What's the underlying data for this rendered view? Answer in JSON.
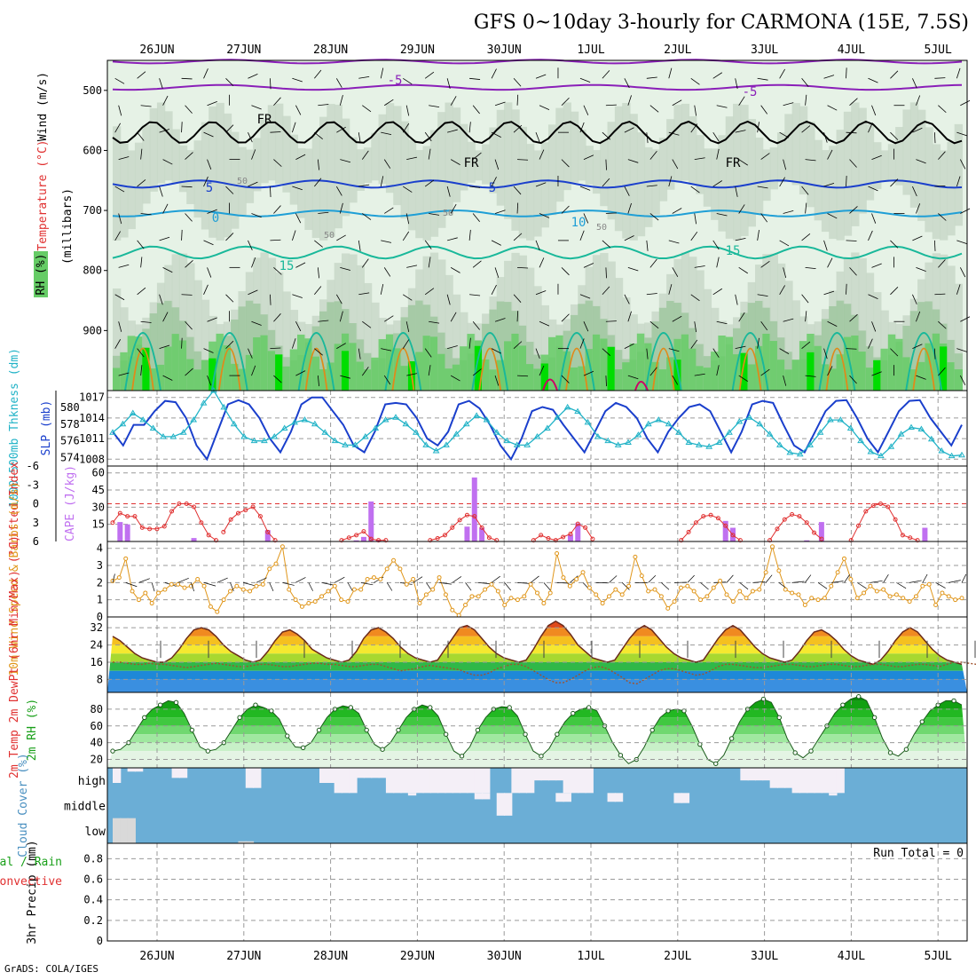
{
  "title": "GFS 0~10day 3-hourly for CARMONA (15E, 7.5S)",
  "footer": "GrADS: COLA/IGES",
  "dates": [
    "26JUN",
    "27JUN",
    "28JUN",
    "29JUN",
    "30JUN",
    "1JUL",
    "2JUL",
    "3JUL",
    "4JUL",
    "5JUL"
  ],
  "colors": {
    "rh_light": "#e6f2e6",
    "rh_mid": "#c8d8c8",
    "rh_dark": "#9fc79f",
    "rh_green": "#66cc66",
    "rh_bright": "#00dd00",
    "t_purple": "#8a1fb8",
    "t_black": "#000000",
    "t_blue": "#1a3fcc",
    "t_cyan": "#1f9fd6",
    "t_teal": "#19b89a",
    "t_orange": "#e08a1a",
    "t_magenta": "#cc0066",
    "slp": "#1a3fcc",
    "thick": "#22b3c7",
    "cape": "#c070f0",
    "li": "#e03030",
    "wind": "#e0961a",
    "dew": "#a0522d",
    "cloud": "#6baed6",
    "cloud_gap": "#f4eff7",
    "cloud_grey": "#d9d9d9",
    "grid": "#9a9a9a"
  },
  "chart_data": [
    {
      "type": "heatmap",
      "name": "cross-section",
      "ylabel": "(millibars)",
      "legend_labels": [
        "Wind (m/s)",
        "Temperature (°C)",
        "RH (%)"
      ],
      "y_ticks": [
        500,
        600,
        700,
        800,
        900
      ],
      "ylim": [
        1000,
        450
      ],
      "contour_labels": [
        "-5",
        "-5",
        "FR",
        "FR",
        "FR",
        "5",
        "5",
        "0",
        "10",
        "15",
        "15",
        "50",
        "50",
        "50",
        "50"
      ]
    },
    {
      "type": "line",
      "name": "slp-thickness",
      "ylabel_left": "1000-500mb Thkness (dm)",
      "ylabel_right": "SLP (mb)",
      "y_ticks_left": [
        574,
        576,
        578,
        580
      ],
      "y_ticks_right": [
        1008,
        1011,
        1014,
        1017
      ],
      "ylim_left": [
        573,
        582
      ],
      "ylim_right": [
        1007,
        1018
      ],
      "series": [
        {
          "name": "SLP (mb)",
          "axis": "right",
          "values": [
            1012,
            1010,
            1013,
            1013,
            1015,
            1016.5,
            1016.3,
            1014,
            1010,
            1008,
            1012,
            1016,
            1016.6,
            1016,
            1014,
            1011,
            1009,
            1012,
            1016,
            1017,
            1017,
            1015,
            1013,
            1010,
            1009,
            1012,
            1016,
            1016.2,
            1016,
            1014,
            1011,
            1010,
            1012,
            1016,
            1016.5,
            1015.4,
            1013,
            1010,
            1008,
            1011,
            1015,
            1015.6,
            1015.2,
            1013,
            1011,
            1009,
            1012,
            1015,
            1016.2,
            1015.6,
            1014,
            1011,
            1009,
            1012,
            1014,
            1015.6,
            1016,
            1015,
            1012,
            1009,
            1012,
            1016,
            1016.5,
            1016.2,
            1013,
            1010,
            1009,
            1012,
            1015,
            1016.5,
            1016.6,
            1014,
            1011,
            1009,
            1012,
            1015,
            1016.5,
            1016.6,
            1014,
            1012,
            1010,
            1013
          ]
        },
        {
          "name": "1000-500mb Thkness (dm)",
          "axis": "left",
          "values": [
            577,
            578,
            579.3,
            578.5,
            577.5,
            576.5,
            576.5,
            577,
            578.5,
            580.5,
            582,
            580,
            578,
            576.5,
            576,
            576,
            576.5,
            577.5,
            578.2,
            578.5,
            578,
            577,
            576,
            575.5,
            575.5,
            576.5,
            577.5,
            578.5,
            578.8,
            578,
            577,
            575.5,
            574.8,
            575.5,
            576.8,
            578,
            579,
            578.5,
            577,
            576,
            575.5,
            575.5,
            576.5,
            577.5,
            578.8,
            580,
            579.5,
            578.2,
            576.5,
            576,
            575.5,
            575.8,
            576.7,
            578,
            578.5,
            578,
            577,
            575.8,
            575.5,
            575.3,
            575.8,
            577,
            578.3,
            578.8,
            578,
            576.8,
            575.5,
            574.6,
            574.4,
            575.5,
            577,
            578.5,
            578.5,
            577.5,
            576,
            574.7,
            574.2,
            575.3,
            576.8,
            577.6,
            577.4,
            576.2,
            574.8,
            574.2,
            574.3
          ]
        }
      ]
    },
    {
      "type": "bar",
      "name": "cape-li",
      "ylabel_left": "Lifted Index",
      "ylabel_right": "CAPE (J/kg)",
      "y_ticks_left": [
        "-6",
        "-3",
        "0",
        "3",
        "6"
      ],
      "y_ticks_right": [
        15,
        30,
        45,
        60
      ],
      "ylim_cape": [
        0,
        66
      ],
      "ylim_li": [
        -6,
        6
      ],
      "cape_bars": [
        {
          "i": 1,
          "value": 17
        },
        {
          "i": 2,
          "value": 15
        },
        {
          "i": 11,
          "value": 3
        },
        {
          "i": 21,
          "value": 10
        },
        {
          "i": 33,
          "value": 1
        },
        {
          "i": 34,
          "value": 4
        },
        {
          "i": 35,
          "value": 35
        },
        {
          "i": 36,
          "value": 1
        },
        {
          "i": 48,
          "value": 13
        },
        {
          "i": 49,
          "value": 56
        },
        {
          "i": 50,
          "value": 12
        },
        {
          "i": 62,
          "value": 6
        },
        {
          "i": 63,
          "value": 16
        },
        {
          "i": 83,
          "value": 18
        },
        {
          "i": 84,
          "value": 12
        },
        {
          "i": 94,
          "value": 1
        },
        {
          "i": 96,
          "value": 17
        },
        {
          "i": 110,
          "value": 12
        }
      ],
      "li_segments": [
        {
          "start": 0,
          "values": [
            3,
            1.5,
            2,
            2,
            3.8,
            4,
            4,
            3.6,
            1.2,
            0,
            0,
            0.5,
            3,
            5,
            5.8
          ]
        },
        {
          "start": 15,
          "values": [
            4.5,
            2.5,
            1.5,
            1,
            0.5,
            2,
            4.5,
            5.8
          ]
        },
        {
          "start": 31,
          "values": [
            5.8,
            5.4,
            5,
            4.4,
            5.6,
            5.8,
            5.8
          ]
        },
        {
          "start": 43,
          "values": [
            5.8,
            5.5,
            5,
            3.8,
            2.6,
            1.8,
            2,
            3.8,
            5.4,
            5.8
          ]
        },
        {
          "start": 57,
          "values": [
            5.8,
            5,
            5.5,
            5.8,
            5.3,
            4.8,
            3.2,
            3.8,
            5.6
          ]
        },
        {
          "start": 77,
          "values": [
            5.8,
            4.5,
            3,
            2,
            1.8,
            2.3,
            3.5,
            5,
            5.8
          ]
        },
        {
          "start": 89,
          "values": [
            5.8,
            4,
            2.5,
            1.7,
            2,
            3,
            4.6,
            5.6
          ]
        },
        {
          "start": 100,
          "values": [
            5.8,
            3.5,
            1.2,
            0.3,
            0,
            0.5,
            2.5,
            5,
            5.4,
            5.8
          ]
        }
      ]
    },
    {
      "type": "line",
      "name": "wind",
      "ylabel": "10m Wind Speed & Barbs (m/s)",
      "y_ticks": [
        0,
        1,
        2,
        3,
        4
      ],
      "ylim": [
        0,
        4.4
      ],
      "values": [
        2.1,
        2.3,
        3.4,
        1.5,
        1,
        1.4,
        0.8,
        1.4,
        1.6,
        1.9,
        1.9,
        1.7,
        1.8,
        2.2,
        1.8,
        0.6,
        0.3,
        1,
        1.5,
        1.8,
        1.6,
        1.5,
        1.8,
        1.9,
        2.8,
        3.1,
        4.1,
        1.6,
        1,
        0.6,
        0.8,
        0.9,
        1.2,
        1.5,
        1.8,
        1,
        0.9,
        1.6,
        1.6,
        2.2,
        2.3,
        2.2,
        2.8,
        3.3,
        2.8,
        1.9,
        2.2,
        0.8,
        1.3,
        1.6,
        2.3,
        1.3,
        0.4,
        0.1,
        0.7,
        1.2,
        1.2,
        1.6,
        1.9,
        1.5,
        0.7,
        1.1,
        1,
        1.2,
        1.9,
        1.4,
        0.8,
        1.4,
        3.7,
        2.3,
        1.8,
        2.2,
        2.6,
        1.7,
        1.3,
        0.8,
        1.2,
        1.6,
        1.3,
        1.8,
        3.5,
        2.4,
        1.5,
        1.6,
        1.2,
        0.5,
        0.9,
        1.7,
        1.8,
        1.5,
        1,
        1.2,
        1.7,
        2.1,
        1.3,
        0.9,
        1.5,
        1.1,
        1.5,
        1.6,
        2.6,
        4.1,
        2.7,
        1.6,
        1.4,
        1.3,
        0.7,
        1.1,
        1,
        1.1,
        1.8,
        2.6,
        3.4,
        2.2,
        1.1,
        1.4,
        1.8,
        1.5,
        1.6,
        1.2,
        1.3,
        1.1,
        0.9,
        1.2,
        1.8,
        1.9,
        0.7,
        1.4,
        1.2,
        1,
        1.1
      ]
    },
    {
      "type": "area",
      "name": "temp",
      "ylabel": "2m Temp 2m DewPt (6hr Min/Max) (°C)",
      "y_ticks": [
        8,
        16,
        24,
        32
      ],
      "ylim": [
        2,
        37
      ],
      "temp": [
        28,
        26,
        23,
        20,
        18,
        17,
        16,
        16,
        18,
        22,
        27,
        31,
        32,
        31,
        28,
        24,
        21,
        19,
        17,
        16,
        17,
        21,
        26,
        30,
        31,
        29,
        26,
        22,
        20,
        18,
        17,
        16,
        17,
        21,
        27,
        31,
        32,
        30,
        27,
        23,
        20,
        18,
        17,
        16,
        17,
        22,
        27,
        32,
        33,
        31,
        27,
        23,
        20,
        18,
        17,
        16,
        17,
        22,
        28,
        33,
        35,
        33,
        29,
        24,
        21,
        18,
        17,
        16,
        17,
        22,
        27,
        31,
        33,
        31,
        27,
        23,
        20,
        18,
        17,
        16,
        17,
        22,
        27,
        31,
        33,
        31,
        27,
        23,
        20,
        18,
        17,
        16,
        17,
        21,
        26,
        30,
        31,
        29,
        26,
        22,
        19,
        17,
        16,
        15,
        17,
        21,
        26,
        30,
        32,
        30,
        26,
        22,
        19,
        17,
        16,
        15
      ],
      "dew": [
        16,
        16,
        15.5,
        15,
        15,
        15.5,
        15,
        15,
        14.5,
        14,
        13.5,
        14,
        14.5,
        15,
        15.5,
        15,
        14.5,
        14,
        14,
        14.5,
        15,
        15,
        14.5,
        14,
        14,
        14.5,
        15,
        15.5,
        15.5,
        15,
        15,
        14.5,
        14,
        14,
        14.5,
        15,
        15,
        14,
        13,
        12,
        12.5,
        13,
        14,
        14.5,
        14,
        13.5,
        13,
        12.5,
        11,
        10,
        10,
        11,
        13,
        14,
        15,
        15,
        14,
        12,
        10,
        8,
        6.5,
        6.5,
        8,
        10,
        12,
        13.5,
        14,
        13,
        11,
        9,
        6.5,
        6,
        8,
        10,
        12,
        13,
        13,
        12,
        11,
        10,
        10.5,
        12,
        14,
        15,
        15,
        14.5,
        14,
        13.5,
        13.5,
        14,
        14.5,
        15,
        15,
        14.5,
        14,
        14,
        14.5,
        15,
        15,
        14.5,
        14,
        14,
        14.5,
        15,
        15,
        14.5,
        14,
        14,
        14.5,
        15,
        15,
        14.5,
        14,
        15,
        16,
        16,
        15.5,
        15,
        14.5,
        15
      ]
    },
    {
      "type": "area",
      "name": "rh",
      "ylabel": "2m RH (%)",
      "y_ticks": [
        20,
        40,
        60,
        80
      ],
      "ylim": [
        10,
        100
      ],
      "values": [
        30,
        32,
        40,
        55,
        70,
        80,
        85,
        90,
        88,
        75,
        55,
        35,
        30,
        32,
        40,
        55,
        70,
        80,
        85,
        82,
        78,
        68,
        48,
        35,
        34,
        40,
        55,
        70,
        80,
        84,
        82,
        75,
        55,
        38,
        32,
        40,
        55,
        70,
        80,
        85,
        82,
        72,
        50,
        30,
        24,
        35,
        55,
        70,
        80,
        83,
        82,
        72,
        50,
        30,
        24,
        33,
        50,
        65,
        75,
        80,
        82,
        78,
        60,
        40,
        25,
        15,
        20,
        35,
        55,
        70,
        78,
        80,
        78,
        60,
        38,
        20,
        15,
        25,
        45,
        65,
        80,
        88,
        92,
        88,
        70,
        45,
        28,
        22,
        30,
        45,
        60,
        75,
        85,
        92,
        95,
        90,
        70,
        45,
        28,
        24,
        32,
        50,
        65,
        78,
        85,
        90,
        90,
        85
      ]
    },
    {
      "type": "heatmap",
      "name": "cloud",
      "ylabel": "Cloud Cover (%)",
      "levels": [
        "high",
        "middle",
        "low"
      ],
      "high_pct": [
        40,
        100,
        85,
        85,
        100,
        100,
        100,
        100,
        60,
        60,
        100,
        100,
        100,
        100,
        100,
        100,
        100,
        100,
        20,
        20,
        100,
        100,
        100,
        100,
        100,
        100,
        100,
        100,
        40,
        40,
        0,
        0,
        0,
        60,
        60,
        60,
        60,
        0,
        0,
        0,
        0,
        0,
        0,
        0,
        0,
        0,
        0,
        0,
        0,
        0,
        0,
        100,
        100,
        100,
        0,
        0,
        0,
        50,
        50,
        50,
        50,
        0,
        0,
        0,
        0,
        100,
        100,
        100,
        100,
        100,
        100,
        100,
        100,
        100,
        100,
        100,
        100,
        100,
        100,
        100,
        100,
        100,
        100,
        100,
        100,
        50,
        50,
        50,
        50,
        20,
        20,
        20,
        0,
        0,
        0,
        0,
        0,
        0,
        0,
        100,
        100,
        100,
        100,
        100,
        100,
        100,
        100,
        100,
        100,
        100,
        100,
        100,
        100,
        100,
        100,
        100,
        100,
        100,
        100,
        100,
        100,
        30,
        30,
        30,
        80,
        80
      ],
      "mid_gaps": [
        {
          "i": 49,
          "pct": 25
        },
        {
          "i": 50,
          "pct": 25
        },
        {
          "i": 52,
          "pct": 90
        },
        {
          "i": 53,
          "pct": 90
        },
        {
          "i": 60,
          "pct": 35
        },
        {
          "i": 61,
          "pct": 35
        },
        {
          "i": 76,
          "pct": 40
        },
        {
          "i": 77,
          "pct": 40
        },
        {
          "i": 97,
          "pct": 10
        },
        {
          "i": 40,
          "pct": 10
        },
        {
          "i": 67,
          "pct": 35
        },
        {
          "i": 68,
          "pct": 35
        }
      ],
      "low_gaps": [
        {
          "i": 0,
          "pct": 100
        },
        {
          "i": 1,
          "pct": 100
        },
        {
          "i": 2,
          "pct": 100
        },
        {
          "i": 17,
          "pct": 8
        },
        {
          "i": 18,
          "pct": 8
        },
        {
          "i": 117,
          "pct": 10
        }
      ]
    },
    {
      "type": "bar",
      "name": "precip",
      "ylabel": "3hr Precip (mm)",
      "legend_labels": [
        "Total / Rain",
        "Convective"
      ],
      "y_ticks": [
        "0",
        "0.2",
        "0.4",
        "0.6",
        "0.8"
      ],
      "ylim": [
        0,
        0.95
      ],
      "values": [],
      "annotation": "Run Total = 0"
    }
  ]
}
